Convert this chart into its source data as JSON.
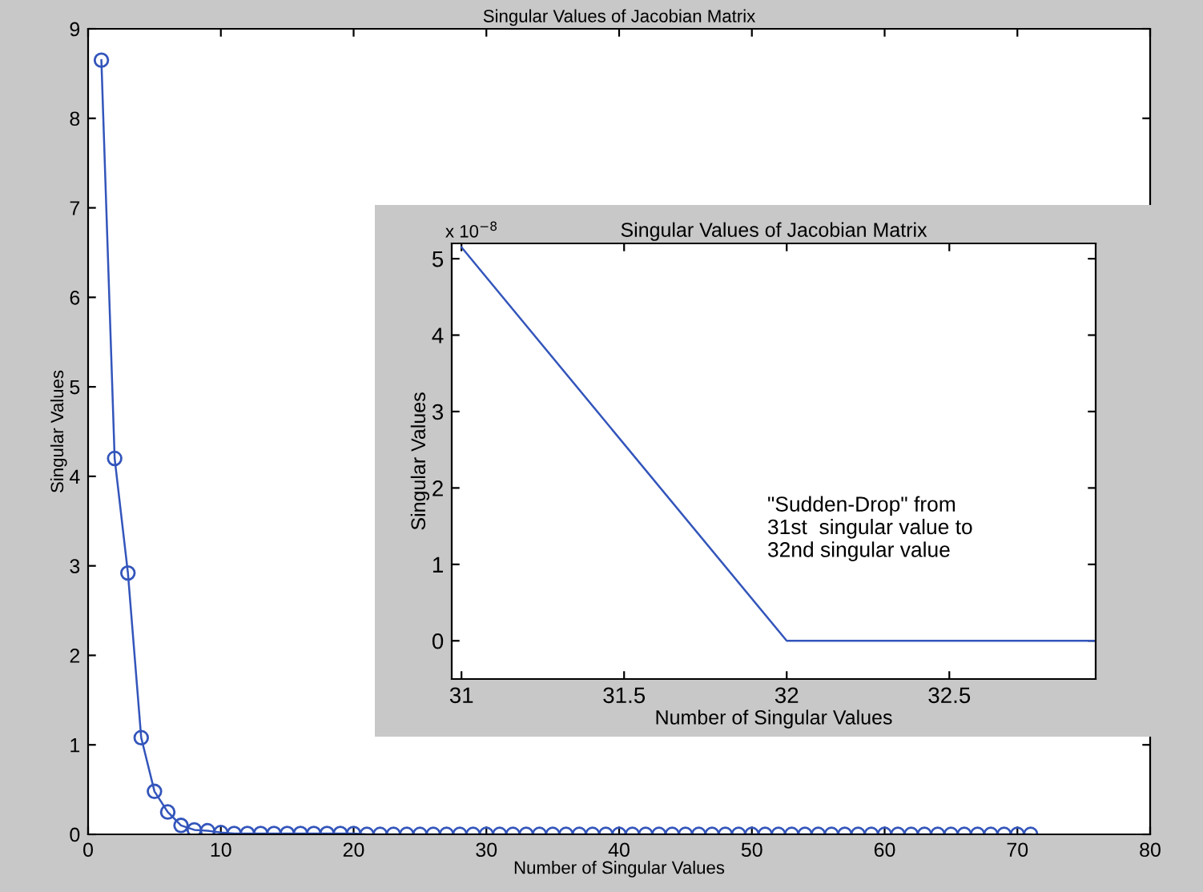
{
  "chart_data": [
    {
      "type": "line",
      "title": "Singular Values of Jacobian Matrix",
      "xlabel": "Number of Singular Values",
      "ylabel": "Singular Values",
      "x": [
        1,
        2,
        3,
        4,
        5,
        6,
        7,
        8,
        9,
        10,
        11,
        12,
        13,
        14,
        15,
        16,
        17,
        18,
        19,
        20,
        21,
        22,
        23,
        24,
        25,
        26,
        27,
        28,
        29,
        30,
        31,
        32,
        33,
        34,
        35,
        36,
        37,
        38,
        39,
        40,
        41,
        42,
        43,
        44,
        45,
        46,
        47,
        48,
        49,
        50,
        51,
        52,
        53,
        54,
        55,
        56,
        57,
        58,
        59,
        60,
        61,
        62,
        63,
        64,
        65,
        66,
        67,
        68,
        69,
        70,
        71
      ],
      "series": [
        {
          "color": "#3355bb",
          "values": [
            8.65,
            4.2,
            2.92,
            1.08,
            0.48,
            0.25,
            0.1,
            0.05,
            0.04,
            0.02,
            0.01,
            0.01,
            0.01,
            0.01,
            0.01,
            0.01,
            0.01,
            0.01,
            0.01,
            0.01,
            0,
            0,
            0,
            0,
            0,
            0,
            0,
            0,
            0,
            0,
            0,
            0,
            0,
            0,
            0,
            0,
            0,
            0,
            0,
            0,
            0,
            0,
            0,
            0,
            0,
            0,
            0,
            0,
            0,
            0,
            0,
            0,
            0,
            0,
            0,
            0,
            0,
            0,
            0,
            0,
            0,
            0,
            0,
            0,
            0,
            0,
            0,
            0,
            0,
            0,
            0
          ]
        }
      ],
      "marker": "circle",
      "line_style": "solid",
      "grid": false,
      "legend": false,
      "xlim": [
        0,
        80
      ],
      "xticks": [
        0,
        10,
        20,
        30,
        40,
        50,
        60,
        70,
        80
      ],
      "ylim": [
        0,
        9
      ],
      "yticks": [
        0,
        1,
        2,
        3,
        4,
        5,
        6,
        7,
        8,
        9
      ]
    },
    {
      "type": "line",
      "title": "Singular Values of Jacobian Matrix",
      "xlabel": "Number of Singular Values",
      "ylabel": "Singular Values",
      "x": [
        31,
        32,
        32.95
      ],
      "series": [
        {
          "color": "#3355bb",
          "values": [
            5.15,
            0,
            0
          ]
        }
      ],
      "marker": "none",
      "line_style": "solid",
      "grid": false,
      "legend": false,
      "xlim": [
        30.97,
        32.95
      ],
      "xticks": [
        31,
        31.5,
        32,
        32.5
      ],
      "ylim": [
        -0.5,
        5.2
      ],
      "yticks": [
        0,
        1,
        2,
        3,
        4,
        5
      ],
      "annotations": [
        "x 10$^{−8}$",
        "\"Sudden-Drop\" from\n31st  singular value to\n32nd singular value"
      ]
    }
  ]
}
